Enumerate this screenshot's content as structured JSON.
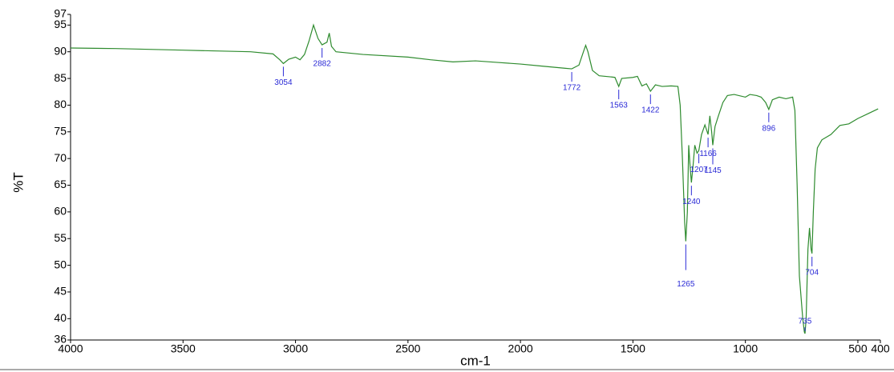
{
  "chart_data": {
    "type": "line",
    "x_label": "cm-1",
    "y_label": "%T",
    "xlim": [
      4000,
      400
    ],
    "ylim": [
      36,
      97
    ],
    "xticks": [
      4000,
      3500,
      3000,
      2500,
      2000,
      1500,
      1000,
      500,
      400
    ],
    "yticks": [
      36,
      40,
      45,
      50,
      55,
      60,
      65,
      70,
      75,
      80,
      85,
      90,
      95,
      97
    ],
    "series": [
      {
        "color": "#2e8b2e",
        "x": [
          4000,
          3800,
          3500,
          3200,
          3100,
          3070,
          3054,
          3030,
          3000,
          2980,
          2960,
          2940,
          2920,
          2900,
          2882,
          2860,
          2850,
          2840,
          2820,
          2700,
          2500,
          2400,
          2300,
          2200,
          2100,
          2000,
          1900,
          1800,
          1772,
          1740,
          1720,
          1710,
          1700,
          1680,
          1650,
          1600,
          1580,
          1563,
          1550,
          1500,
          1480,
          1460,
          1440,
          1422,
          1400,
          1370,
          1330,
          1300,
          1290,
          1280,
          1270,
          1265,
          1258,
          1252,
          1245,
          1240,
          1232,
          1225,
          1215,
          1207,
          1195,
          1180,
          1166,
          1158,
          1150,
          1145,
          1135,
          1120,
          1100,
          1080,
          1050,
          1000,
          980,
          950,
          930,
          910,
          896,
          880,
          850,
          820,
          790,
          780,
          770,
          760,
          745,
          738,
          735,
          730,
          722,
          715,
          708,
          704,
          698,
          690,
          680,
          660,
          620,
          580,
          540,
          500,
          450,
          410
        ],
        "values": [
          90.7,
          90.6,
          90.3,
          90.0,
          89.6,
          88.5,
          87.8,
          88.6,
          89.0,
          88.5,
          89.5,
          92,
          95.0,
          92.5,
          91.3,
          91.8,
          93.5,
          91,
          90,
          89.5,
          89.0,
          88.5,
          88.1,
          88.3,
          88.0,
          87.7,
          87.3,
          86.9,
          86.8,
          87.5,
          90,
          91.2,
          90,
          86.5,
          85.5,
          85.3,
          85.2,
          83.5,
          85,
          85.2,
          85.4,
          83.6,
          84.0,
          82.6,
          83.8,
          83.5,
          83.6,
          83.5,
          80,
          70,
          58,
          54.5,
          60,
          72.5,
          68,
          65.5,
          69,
          72.5,
          71,
          71.5,
          74.5,
          76.3,
          74.5,
          78,
          75,
          72.5,
          76,
          78,
          80.5,
          81.8,
          82,
          81.5,
          82,
          81.8,
          81.5,
          80.5,
          79.2,
          81,
          81.5,
          81.2,
          81.5,
          79,
          65,
          48,
          40,
          37.5,
          37.2,
          40,
          53,
          57,
          53,
          52.2,
          60,
          68,
          72,
          73.5,
          74.5,
          76.2,
          76.5,
          77.5,
          78.5,
          79.3
        ]
      }
    ],
    "peaks": [
      {
        "x": 3054,
        "y": 87.8
      },
      {
        "x": 2882,
        "y": 91.3
      },
      {
        "x": 1772,
        "y": 86.8
      },
      {
        "x": 1563,
        "y": 83.5
      },
      {
        "x": 1422,
        "y": 82.6
      },
      {
        "x": 1265,
        "y": 54.5
      },
      {
        "x": 1240,
        "y": 65.5
      },
      {
        "x": 1207,
        "y": 71.5
      },
      {
        "x": 1166,
        "y": 74.5
      },
      {
        "x": 1145,
        "y": 72.5
      },
      {
        "x": 896,
        "y": 79.2
      },
      {
        "x": 735,
        "y": 37.2
      },
      {
        "x": 704,
        "y": 52.2
      }
    ],
    "peak_color": "#2a2ad6"
  }
}
